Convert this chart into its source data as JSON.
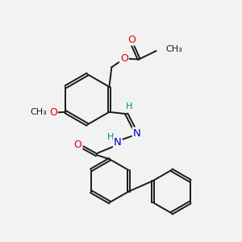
{
  "background_color": "#f2f2f2",
  "bond_color": "#1a1a1a",
  "bond_width": 1.4,
  "atom_colors": {
    "O": "#dd0000",
    "N": "#0000cc",
    "H": "#008888"
  },
  "figsize": [
    3.0,
    3.0
  ],
  "dpi": 100,
  "xlim": [
    0,
    10
  ],
  "ylim": [
    0,
    10
  ]
}
